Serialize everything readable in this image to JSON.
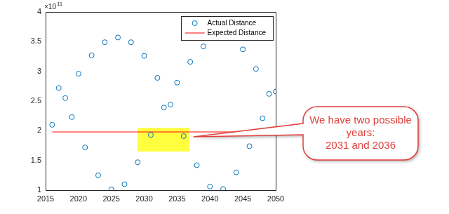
{
  "chart_data": {
    "type": "scatter",
    "y_exponent_label": "×10",
    "y_exponent": 11,
    "series": [
      {
        "name": "Actual Distance",
        "type": "scatter",
        "marker": "circle",
        "color": "#0072bd",
        "x": [
          2016,
          2017,
          2018,
          2019,
          2020,
          2021,
          2022,
          2023,
          2024,
          2025,
          2026,
          2027,
          2028,
          2029,
          2030,
          2031,
          2032,
          2033,
          2034,
          2035,
          2036,
          2037,
          2038,
          2039,
          2040,
          2042,
          2044,
          2045,
          2046,
          2047,
          2048,
          2049,
          2050
        ],
        "values": [
          2.1,
          2.72,
          2.55,
          2.23,
          2.96,
          1.72,
          3.27,
          1.25,
          3.49,
          1.01,
          3.57,
          1.1,
          3.49,
          1.47,
          3.26,
          1.93,
          2.89,
          2.39,
          2.44,
          2.81,
          1.91,
          3.16,
          1.42,
          3.42,
          1.06,
          1.02,
          1.3,
          3.37,
          1.74,
          3.04,
          2.21,
          2.62,
          2.66
        ]
      },
      {
        "name": "Expected Distance",
        "type": "line",
        "line_style": "solid",
        "color": "#ff0000",
        "x": [
          2016,
          2050
        ],
        "values": [
          1.98,
          1.98
        ]
      }
    ],
    "xlim": [
      2015,
      2050
    ],
    "xticks": [
      2015,
      2020,
      2025,
      2030,
      2035,
      2040,
      2045,
      2050
    ],
    "ylim": [
      1,
      4
    ],
    "yticks": [
      1,
      1.5,
      2,
      2.5,
      3,
      3.5,
      4
    ],
    "grid": false,
    "legend": "upper right",
    "annotation": {
      "text_lines": [
        "We have two possible",
        "years:",
        "2031 and 2036"
      ],
      "highlight_x": [
        2031,
        2036
      ]
    }
  }
}
